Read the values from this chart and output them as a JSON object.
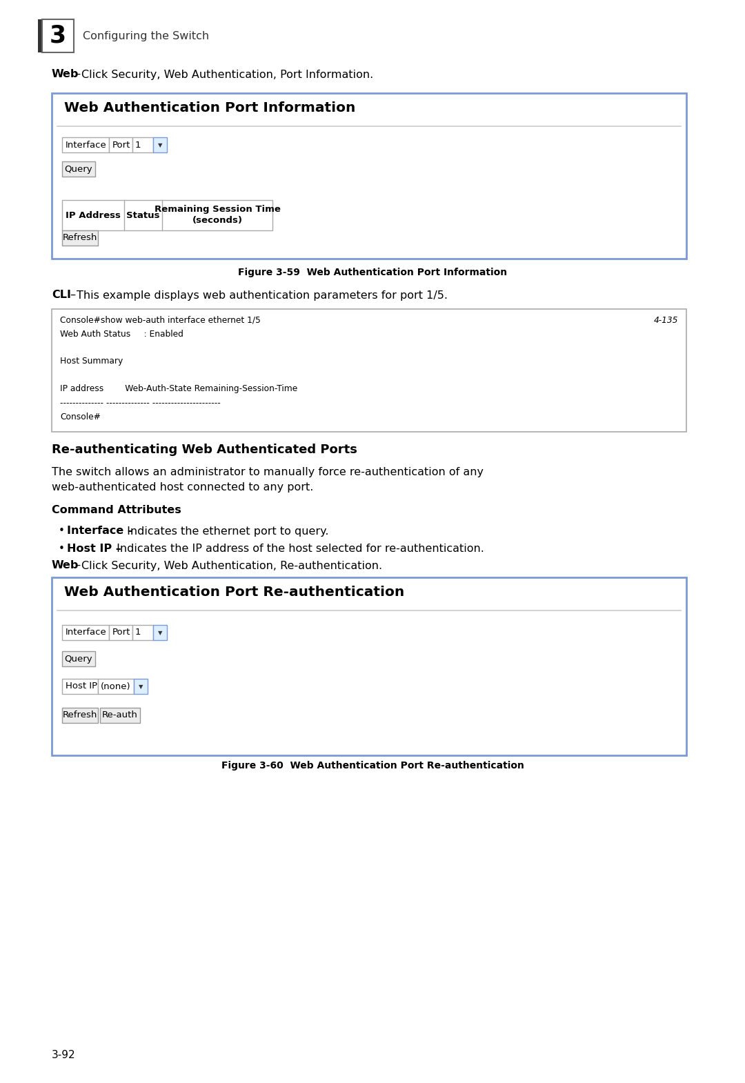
{
  "bg_color": "#ffffff",
  "chapter_num": "3",
  "chapter_title": "Configuring the Switch",
  "web_label1": "Web",
  "web_dash1": " – ",
  "web_text1": "Click Security, Web Authentication, Port Information.",
  "box1_title": "Web Authentication Port Information",
  "box1_interface_label": "Interface",
  "box1_port_label": "Port",
  "box1_port_val": "1",
  "box1_query_btn": "Query",
  "box1_table_col1": "IP Address",
  "box1_table_col2": "Status",
  "box1_table_col3a": "Remaining Session Time",
  "box1_table_col3b": "(seconds)",
  "box1_refresh_btn": "Refresh",
  "fig59_caption": "Figure 3-59  Web Authentication Port Information",
  "cli_label": "CLI",
  "cli_dash": " – ",
  "cli_text": "This example displays web authentication parameters for port 1/5.",
  "cli_box_line1": "Console#show web-auth interface ethernet 1/5",
  "cli_box_line1r": "4-135",
  "cli_box_line2": "Web Auth Status     : Enabled",
  "cli_box_line3": "",
  "cli_box_line4": "Host Summary",
  "cli_box_line5": "",
  "cli_box_line6": "IP address        Web-Auth-State Remaining-Session-Time",
  "cli_box_line7": "-------------- -------------- ----------------------",
  "cli_box_line8": "Console#",
  "section_title": "Re-authenticating Web Authenticated Ports",
  "section_body1": "The switch allows an administrator to manually force re-authentication of any",
  "section_body2": "web-authenticated host connected to any port.",
  "cmd_attr_title": "Command Attributes",
  "bullet1_bold": "Interface –",
  "bullet1_rest": " Indicates the ethernet port to query.",
  "bullet2_bold": "Host IP –",
  "bullet2_rest": " Indicates the IP address of the host selected for re-authentication.",
  "web_label2": "Web",
  "web_dash2": " – ",
  "web_text2": "Click Security, Web Authentication, Re-authentication.",
  "box2_title": "Web Authentication Port Re-authentication",
  "box2_interface_label": "Interface",
  "box2_port_label": "Port",
  "box2_port_val": "1",
  "box2_query_btn": "Query",
  "box2_hostip_label": "Host IP",
  "box2_hostip_val": "(none)",
  "box2_refresh_btn": "Refresh",
  "box2_reauth_btn": "Re-auth",
  "fig60_caption": "Figure 3-60  Web Authentication Port Re-authentication",
  "page_num": "3-92",
  "box_border_color": "#7b9bd4",
  "box_bg_color": "#ffffff",
  "cli_border_color": "#aaaaaa",
  "cli_bg_color": "#ffffff",
  "table_border_color": "#aaaaaa",
  "btn_bg": "#ececec",
  "btn_border": "#999999",
  "dropdown_bg": "#ddeeff",
  "dropdown_border": "#7b9bd4",
  "plain_box_border": "#aaaaaa"
}
